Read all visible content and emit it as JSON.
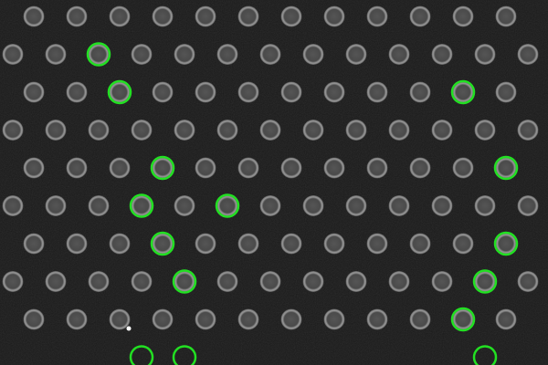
{
  "image": {
    "background_color": "#1a1a1a",
    "pillar_fill": "#4a4a4a",
    "pillar_edge": "#a8a8a8",
    "highlight_color": "#22e022",
    "pattern": "hexagonal-dot-array"
  },
  "grid": {
    "rows": 10,
    "columns_even_rows": 13,
    "columns_odd_rows": 13
  },
  "highlighted": [
    {
      "row": 1,
      "col": 2
    },
    {
      "row": 2,
      "col": 2
    },
    {
      "row": 2,
      "col": 10
    },
    {
      "row": 4,
      "col": 3
    },
    {
      "row": 4,
      "col": 11
    },
    {
      "row": 5,
      "col": 3
    },
    {
      "row": 5,
      "col": 5
    },
    {
      "row": 6,
      "col": 3
    },
    {
      "row": 6,
      "col": 11
    },
    {
      "row": 7,
      "col": 4
    },
    {
      "row": 7,
      "col": 11
    },
    {
      "row": 8,
      "col": 10
    },
    {
      "row": 9,
      "col": 3
    },
    {
      "row": 9,
      "col": 4
    },
    {
      "row": 9,
      "col": 11
    }
  ],
  "artifacts": [
    {
      "type": "bright-speck",
      "row": 8,
      "col": 2
    }
  ]
}
